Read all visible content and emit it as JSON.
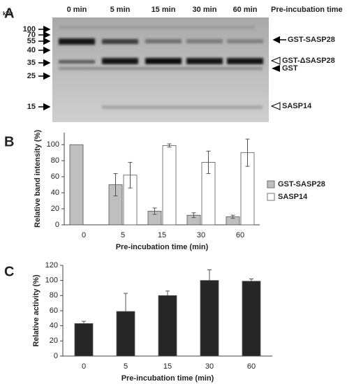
{
  "panel_labels": [
    "A",
    "B",
    "C"
  ],
  "gel": {
    "unit_label": "kDa",
    "lanes": [
      "0 min",
      "5 min",
      "15 min",
      "30 min",
      "60 min"
    ],
    "lane_axis_title": "Pre-incubation time",
    "markers": [
      100,
      70,
      55,
      40,
      35,
      25,
      15
    ],
    "bands": [
      "GST-SASP28",
      "GST-ΔSASP28",
      "GST",
      "SASP14"
    ]
  },
  "chart_data": [
    {
      "type": "bar",
      "categories": [
        "0",
        "5",
        "15",
        "30",
        "60"
      ],
      "x_label": "Pre-incubation time (min)",
      "y_label": "Relative band intensity (%)",
      "ylim": [
        0,
        115
      ],
      "yticks": [
        0,
        20,
        40,
        60,
        80,
        100
      ],
      "legend": "right",
      "error_bars": "both",
      "series": [
        {
          "name": "GST-SASP28",
          "color": "#bfbfbf",
          "values": [
            100,
            50,
            17,
            12,
            10
          ],
          "errors": [
            null,
            14,
            4,
            3,
            2
          ]
        },
        {
          "name": "SASP14",
          "color": "#ffffff",
          "values": [
            0,
            62,
            99,
            78,
            90
          ],
          "errors": [
            null,
            16,
            2,
            14,
            17
          ]
        }
      ]
    },
    {
      "type": "bar",
      "categories": [
        "0",
        "5",
        "15",
        "30",
        "60"
      ],
      "x_label": "Pre-incubation time (min)",
      "y_label": "Relative activity (%)",
      "ylim": [
        0,
        120
      ],
      "yticks": [
        0,
        20,
        40,
        60,
        80,
        100,
        120
      ],
      "error_bars": "upper",
      "color": "#262626",
      "values": [
        43,
        59,
        80,
        100,
        99
      ],
      "errors": [
        3,
        24,
        6,
        14,
        3
      ]
    }
  ]
}
